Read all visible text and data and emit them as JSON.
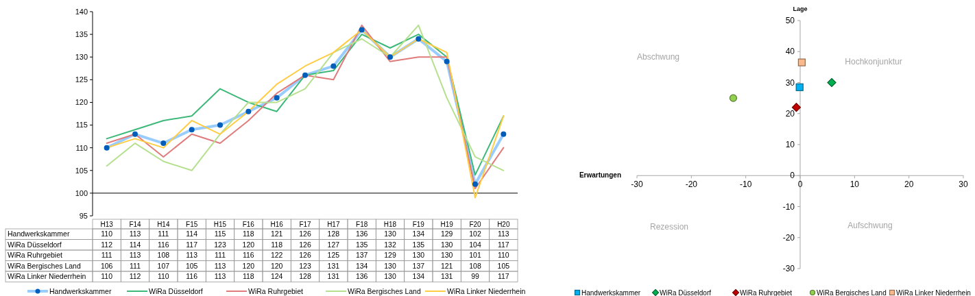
{
  "chart_data": [
    {
      "type": "line",
      "categories": [
        "H13",
        "F14",
        "H14",
        "F15",
        "H15",
        "F16",
        "H16",
        "F17",
        "H17",
        "F18",
        "H18",
        "F19",
        "H19",
        "F20",
        "H20"
      ],
      "ylim": [
        95,
        140
      ],
      "yticks": [
        95,
        100,
        105,
        110,
        115,
        120,
        125,
        130,
        135,
        140
      ],
      "ref_lines": [
        {
          "axis": "y",
          "value": 100,
          "color": "#000000"
        }
      ],
      "data_labels": true,
      "legend": "bottom",
      "grid": false,
      "series": [
        {
          "name": "Handwerkskammer",
          "color": "#99ccff",
          "marker": "circle",
          "values": [
            110,
            113,
            111,
            114,
            115,
            118,
            121,
            126,
            128,
            136,
            130,
            134,
            129,
            102,
            113
          ]
        },
        {
          "name": "WiRa Düsseldorf",
          "color": "#3cb878",
          "marker": "none",
          "values": [
            112,
            114,
            116,
            117,
            123,
            120,
            118,
            126,
            127,
            135,
            132,
            135,
            130,
            104,
            117
          ]
        },
        {
          "name": "WiRa Ruhrgebiet",
          "color": "#e07b7b",
          "marker": "none",
          "values": [
            111,
            113,
            108,
            113,
            111,
            116,
            122,
            126,
            125,
            137,
            129,
            130,
            130,
            101,
            110
          ]
        },
        {
          "name": "WiRa Bergisches Land",
          "color": "#b5e08e",
          "marker": "none",
          "values": [
            106,
            111,
            107,
            105,
            113,
            120,
            120,
            123,
            131,
            134,
            130,
            137,
            121,
            108,
            105
          ]
        },
        {
          "name": "WiRa Linker Niederrhein",
          "color": "#ffcc44",
          "marker": "none",
          "values": [
            110,
            112,
            110,
            116,
            113,
            118,
            124,
            128,
            131,
            136,
            130,
            134,
            131,
            99,
            117
          ]
        }
      ]
    },
    {
      "type": "scatter",
      "xlabel": "Erwartungen",
      "ylabel": "Lage",
      "xlim": [
        -30,
        30
      ],
      "ylim": [
        -30,
        50
      ],
      "xticks": [
        -30,
        -20,
        -10,
        0,
        10,
        20,
        30
      ],
      "yticks": [
        -30,
        -20,
        -10,
        0,
        10,
        20,
        30,
        40,
        50
      ],
      "legend": "bottom",
      "grid": false,
      "annotations": [
        "Abschwung",
        "Hochkonjunktur",
        "Rezession",
        "Aufschwung"
      ],
      "series": [
        {
          "name": "Handwerkskammer",
          "color": "#00b0f0",
          "marker": "square",
          "x": [
            -0.1
          ],
          "values": [
            28.5
          ]
        },
        {
          "name": "WiRa Düsseldorf",
          "color": "#00b050",
          "marker": "diamond",
          "x": [
            5.8
          ],
          "values": [
            30
          ]
        },
        {
          "name": "WiRa Ruhrgebiet",
          "color": "#c00000",
          "marker": "diamond",
          "x": [
            -0.7
          ],
          "values": [
            22
          ]
        },
        {
          "name": "WiRa Bergisches Land",
          "color": "#92d050",
          "marker": "circle",
          "x": [
            -12.3
          ],
          "values": [
            25
          ]
        },
        {
          "name": "WiRa Linker Niederrhein",
          "color": "#f9b98a",
          "marker": "square",
          "x": [
            0.3
          ],
          "values": [
            36.5
          ]
        }
      ]
    }
  ]
}
